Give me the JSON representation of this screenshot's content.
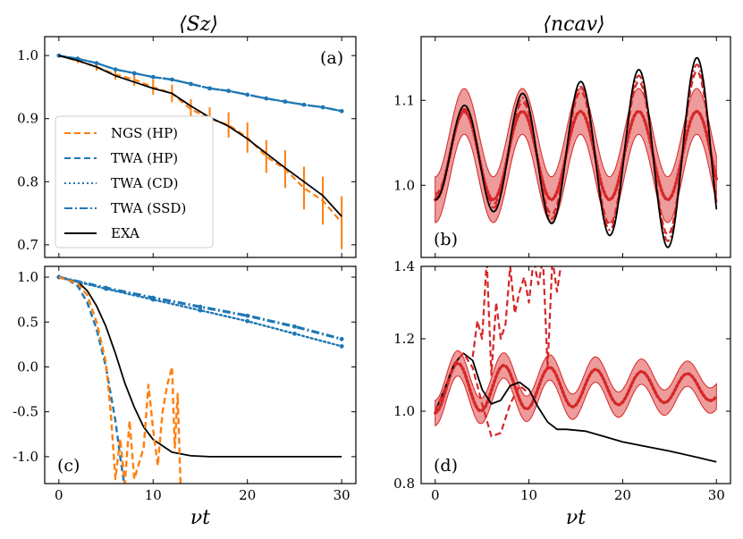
{
  "colors": {
    "orange": "#ff7f0e",
    "blue": "#1f77b4",
    "red": "#d62728",
    "black": "#000000",
    "band": "#e8797a"
  },
  "chart_data": [
    {
      "id": "a",
      "type": "line",
      "panel_label": "(a)",
      "column_title": "⟨S_z⟩",
      "column_title_text": "Sz",
      "xlim": [
        -1.5,
        31.5
      ],
      "ylim": [
        0.68,
        1.03
      ],
      "xticks": [
        0,
        10,
        20,
        30
      ],
      "yticks": [
        0.7,
        0.8,
        0.9,
        1.0
      ],
      "ytick_labels": [
        "0.7",
        "0.8",
        "0.9",
        "1.0"
      ],
      "xtick_labels": [],
      "legend": {
        "placement": "center-left",
        "entries": [
          "NGS (HP)",
          "TWA (HP)",
          "TWA (CD)",
          "TWA (SSD)",
          "EXA"
        ]
      },
      "series": [
        {
          "name": "NGS (HP)",
          "style": "dashed",
          "color": "orange",
          "errorbars": true,
          "x": [
            0,
            2,
            4,
            6,
            8,
            10,
            12,
            14,
            16,
            18,
            20,
            22,
            24,
            26,
            28,
            30
          ],
          "y": [
            1.0,
            0.992,
            0.982,
            0.97,
            0.962,
            0.95,
            0.94,
            0.915,
            0.9,
            0.89,
            0.87,
            0.84,
            0.82,
            0.79,
            0.77,
            0.735
          ],
          "err": [
            0.0,
            0.004,
            0.006,
            0.008,
            0.01,
            0.012,
            0.014,
            0.016,
            0.018,
            0.02,
            0.024,
            0.026,
            0.03,
            0.034,
            0.038,
            0.042
          ]
        },
        {
          "name": "TWA (HP)",
          "style": "dashed",
          "color": "blue",
          "x": [
            0,
            2,
            4,
            6,
            8,
            10,
            12,
            14,
            16,
            18,
            20,
            22,
            24,
            26,
            28,
            30
          ],
          "y": [
            1.0,
            0.995,
            0.988,
            0.978,
            0.972,
            0.966,
            0.962,
            0.955,
            0.948,
            0.944,
            0.938,
            0.932,
            0.927,
            0.922,
            0.918,
            0.912
          ]
        },
        {
          "name": "TWA (CD)",
          "style": "dotted",
          "color": "blue",
          "x": [
            0,
            2,
            4,
            6,
            8,
            10,
            12,
            14,
            16,
            18,
            20,
            22,
            24,
            26,
            28,
            30
          ],
          "y": [
            1.0,
            0.995,
            0.988,
            0.978,
            0.972,
            0.966,
            0.962,
            0.955,
            0.948,
            0.944,
            0.938,
            0.932,
            0.927,
            0.922,
            0.918,
            0.912
          ]
        },
        {
          "name": "TWA (SSD)",
          "style": "dashdot",
          "color": "blue",
          "x": [
            0,
            2,
            4,
            6,
            8,
            10,
            12,
            14,
            16,
            18,
            20,
            22,
            24,
            26,
            28,
            30
          ],
          "y": [
            1.0,
            0.995,
            0.988,
            0.978,
            0.972,
            0.966,
            0.962,
            0.955,
            0.948,
            0.944,
            0.938,
            0.932,
            0.927,
            0.922,
            0.918,
            0.912
          ]
        },
        {
          "name": "EXA",
          "style": "solid",
          "color": "black",
          "x": [
            0,
            2,
            4,
            6,
            8,
            10,
            12,
            14,
            16,
            18,
            20,
            22,
            24,
            26,
            28,
            30
          ],
          "y": [
            1.0,
            0.992,
            0.982,
            0.968,
            0.958,
            0.948,
            0.94,
            0.92,
            0.902,
            0.888,
            0.868,
            0.845,
            0.822,
            0.8,
            0.778,
            0.745
          ]
        }
      ]
    },
    {
      "id": "b",
      "type": "line",
      "panel_label": "(b)",
      "column_title": "⟨n_cav⟩",
      "column_title_text": "ncav",
      "xlim": [
        -1.5,
        31.5
      ],
      "ylim": [
        0.915,
        1.175
      ],
      "xticks": [
        0,
        10,
        20,
        30
      ],
      "yticks": [
        1.0,
        1.1
      ],
      "ytick_labels": [
        "1.0",
        "1.1"
      ],
      "xtick_labels": [],
      "model": {
        "period": 6.2,
        "mean": 1.035,
        "amp_series": {
          "x": [
            0,
            30
          ],
          "exa": [
            0.052,
            0.12
          ],
          "band": [
            0.052,
            0.052
          ]
        },
        "band_halfwidth": 0.027
      },
      "series_names": [
        "NGS (HP)",
        "TWA (HP)",
        "TWA (CD)",
        "TWA (SSD)",
        "EXA"
      ]
    },
    {
      "id": "c",
      "type": "line",
      "panel_label": "(c)",
      "xlim": [
        -1.5,
        31.5
      ],
      "ylim": [
        -1.3,
        1.12
      ],
      "xticks": [
        0,
        10,
        20,
        30
      ],
      "xtick_labels": [
        "0",
        "10",
        "20",
        "30"
      ],
      "yticks": [
        -1.0,
        -0.5,
        0.0,
        0.5,
        1.0
      ],
      "ytick_labels": [
        "-1.0",
        "-0.5",
        "0.0",
        "0.5",
        "1.0"
      ],
      "xlabel": "νt",
      "series": [
        {
          "name": "EXA",
          "color": "black",
          "style": "solid",
          "x": [
            0,
            2,
            3,
            4,
            5,
            6,
            7,
            8,
            9,
            10,
            12,
            14,
            16,
            18,
            20,
            25,
            30
          ],
          "y": [
            1.0,
            0.95,
            0.85,
            0.68,
            0.45,
            0.15,
            -0.18,
            -0.45,
            -0.67,
            -0.81,
            -0.95,
            -0.99,
            -1.0,
            -1.0,
            -1.0,
            -1.0,
            -1.0
          ]
        },
        {
          "name": "TWA (HP)",
          "color": "blue",
          "style": "dashed",
          "x": [
            0,
            1,
            2,
            3,
            4,
            5,
            6,
            6.5,
            7
          ],
          "y": [
            1.0,
            0.97,
            0.9,
            0.72,
            0.42,
            0.0,
            -0.6,
            -1.0,
            -1.35
          ]
        },
        {
          "name": "TWA (CD)",
          "color": "blue",
          "style": "dotted",
          "x": [
            0,
            5,
            10,
            15,
            20,
            25,
            30
          ],
          "y": [
            1.0,
            0.87,
            0.75,
            0.63,
            0.51,
            0.37,
            0.23
          ]
        },
        {
          "name": "TWA (SSD)",
          "color": "blue",
          "style": "dashdot",
          "x": [
            0,
            5,
            10,
            15,
            20,
            25,
            30
          ],
          "y": [
            1.0,
            0.88,
            0.77,
            0.67,
            0.57,
            0.45,
            0.31
          ]
        },
        {
          "name": "NGS (HP)",
          "color": "orange",
          "style": "dashed",
          "x": [
            0,
            2,
            3,
            4,
            5,
            5.5,
            6,
            6.5,
            7,
            7.5,
            8,
            9,
            9.5,
            10,
            10.5,
            11,
            11.5,
            12,
            12.3,
            12.6,
            12.9
          ],
          "y": [
            1.0,
            0.93,
            0.8,
            0.5,
            0.05,
            -0.5,
            -1.25,
            -0.8,
            -1.3,
            -0.6,
            -1.25,
            -0.9,
            -0.2,
            -0.7,
            -1.1,
            -0.5,
            -0.2,
            0.0,
            -0.9,
            -0.3,
            -1.3
          ]
        }
      ]
    },
    {
      "id": "d",
      "type": "line",
      "panel_label": "(d)",
      "xlim": [
        -1.5,
        31.5
      ],
      "ylim": [
        0.8,
        1.4
      ],
      "xticks": [
        0,
        10,
        20,
        30
      ],
      "xtick_labels": [
        "0",
        "10",
        "20",
        "30"
      ],
      "yticks": [
        0.8,
        1.0,
        1.2,
        1.4
      ],
      "ytick_labels": [
        "0.8",
        "1.0",
        "1.2",
        "1.4"
      ],
      "xlabel": "νt",
      "series": [
        {
          "name": "EXA",
          "color": "black",
          "style": "solid",
          "x": [
            0,
            1,
            2,
            3,
            4,
            5,
            6,
            7,
            8,
            9,
            10,
            11,
            12,
            13,
            14,
            16,
            18,
            20,
            22,
            25,
            28,
            30
          ],
          "y": [
            1.0,
            1.06,
            1.13,
            1.16,
            1.14,
            1.06,
            1.02,
            1.03,
            1.07,
            1.08,
            1.06,
            1.01,
            0.97,
            0.95,
            0.95,
            0.945,
            0.93,
            0.915,
            0.905,
            0.89,
            0.872,
            0.86
          ]
        },
        {
          "name": "TWA (HP)",
          "color": "red",
          "style": "dashed",
          "x": [
            0,
            1,
            2,
            3,
            4,
            5,
            6,
            7,
            8,
            9,
            10
          ],
          "y": [
            1.0,
            1.06,
            1.13,
            1.16,
            1.12,
            1.02,
            0.93,
            0.94,
            1.02,
            1.07,
            1.05
          ]
        },
        {
          "name": "NGS (HP)",
          "color": "red",
          "style": "dashed",
          "x": [
            4,
            4.5,
            5,
            5.5,
            6,
            6.5,
            7,
            7.5,
            8,
            8.5,
            9,
            9.5,
            10,
            10.5,
            11,
            11.5,
            12,
            12.5,
            13,
            13.5,
            14
          ],
          "y": [
            1.15,
            1.25,
            1.2,
            1.42,
            1.1,
            1.3,
            1.2,
            1.24,
            1.4,
            1.27,
            1.33,
            1.37,
            1.3,
            1.42,
            1.35,
            1.42,
            1.12,
            1.42,
            1.33,
            1.42,
            1.4
          ]
        }
      ],
      "band": {
        "mean": 1.065,
        "amp_start": 0.07,
        "amp_end": 0.035,
        "period": 4.9,
        "halfwidth": 0.035
      }
    }
  ]
}
